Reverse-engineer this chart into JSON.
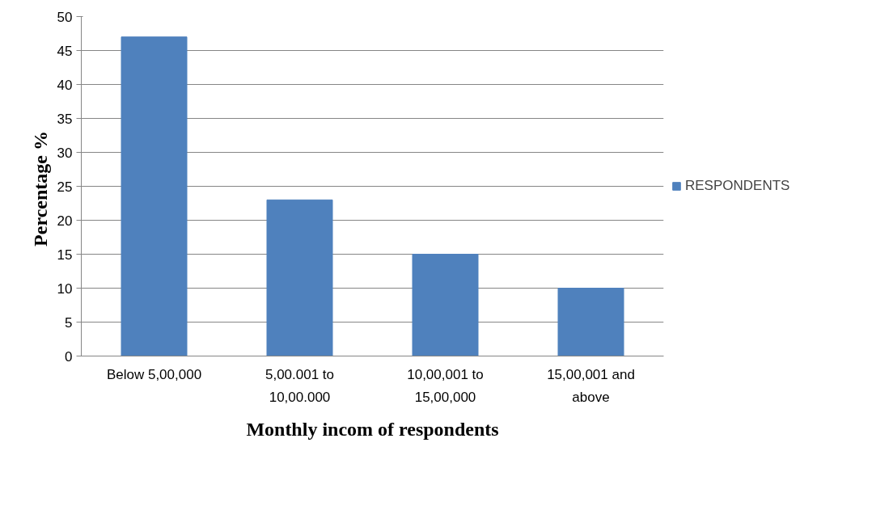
{
  "chart_data": {
    "type": "bar",
    "xlabel": "Monthly incom of respondents",
    "ylabel": "Percentage  %",
    "categories": [
      "Below 5,00,000",
      "5,00.001 to 10,00.000",
      "10,00,001 to 15,00,000",
      "15,00,001 and above"
    ],
    "series": [
      {
        "name": "RESPONDENTS",
        "color": "#4f81bd",
        "values": [
          47,
          23,
          15,
          10
        ]
      }
    ],
    "ylim": [
      0,
      50
    ],
    "yticks": [
      0,
      5,
      10,
      15,
      20,
      25,
      30,
      35,
      40,
      45,
      50
    ],
    "grid": "y",
    "legend": "right"
  }
}
